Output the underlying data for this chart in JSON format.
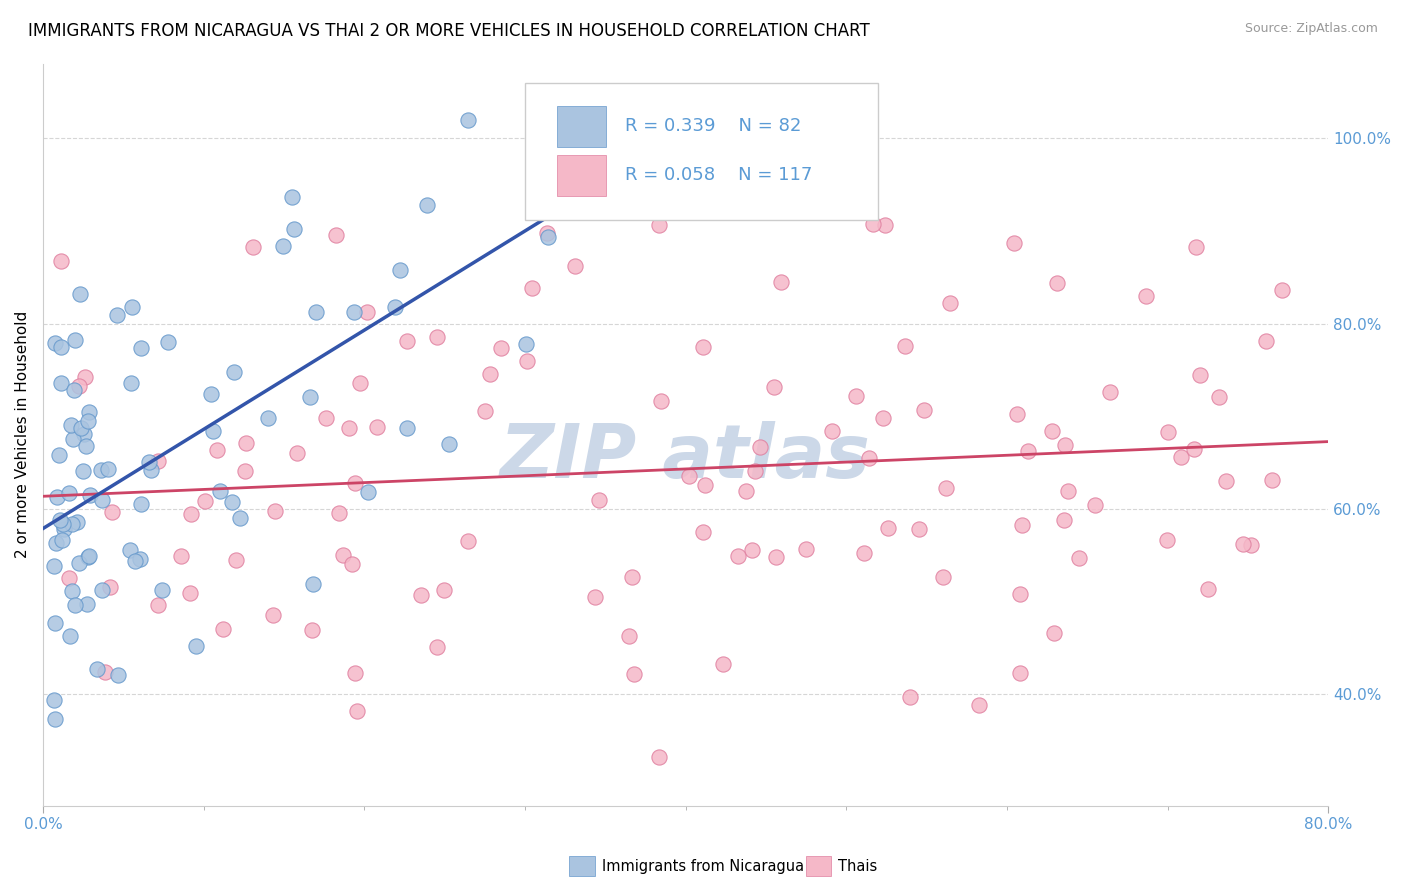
{
  "title": "IMMIGRANTS FROM NICARAGUA VS THAI 2 OR MORE VEHICLES IN HOUSEHOLD CORRELATION CHART",
  "source": "Source: ZipAtlas.com",
  "ylabel": "2 or more Vehicles in Household",
  "xlim": [
    0.0,
    80.0
  ],
  "ylim": [
    28.0,
    108.0
  ],
  "y_tick_positions": [
    40,
    60,
    80,
    100
  ],
  "y_tick_labels": [
    "40.0%",
    "60.0%",
    "80.0%",
    "100.0%"
  ],
  "r_nicaragua": 0.339,
  "n_nicaragua": 82,
  "r_thai": 0.058,
  "n_thai": 117,
  "color_nicaragua_fill": "#aac4e0",
  "color_nicaragua_edge": "#6699cc",
  "color_thai_fill": "#f5b8c8",
  "color_thai_edge": "#e080a0",
  "trendline_nicaragua_color": "#3355aa",
  "trendline_thai_color": "#cc4466",
  "watermark_color": "#ccd8e8",
  "legend_label1": "Immigrants from Nicaragua",
  "legend_label2": "Thais",
  "background_color": "#ffffff",
  "grid_color": "#cccccc",
  "tick_color": "#5b9bd5",
  "title_fontsize": 12,
  "axis_label_fontsize": 11,
  "tick_fontsize": 11
}
